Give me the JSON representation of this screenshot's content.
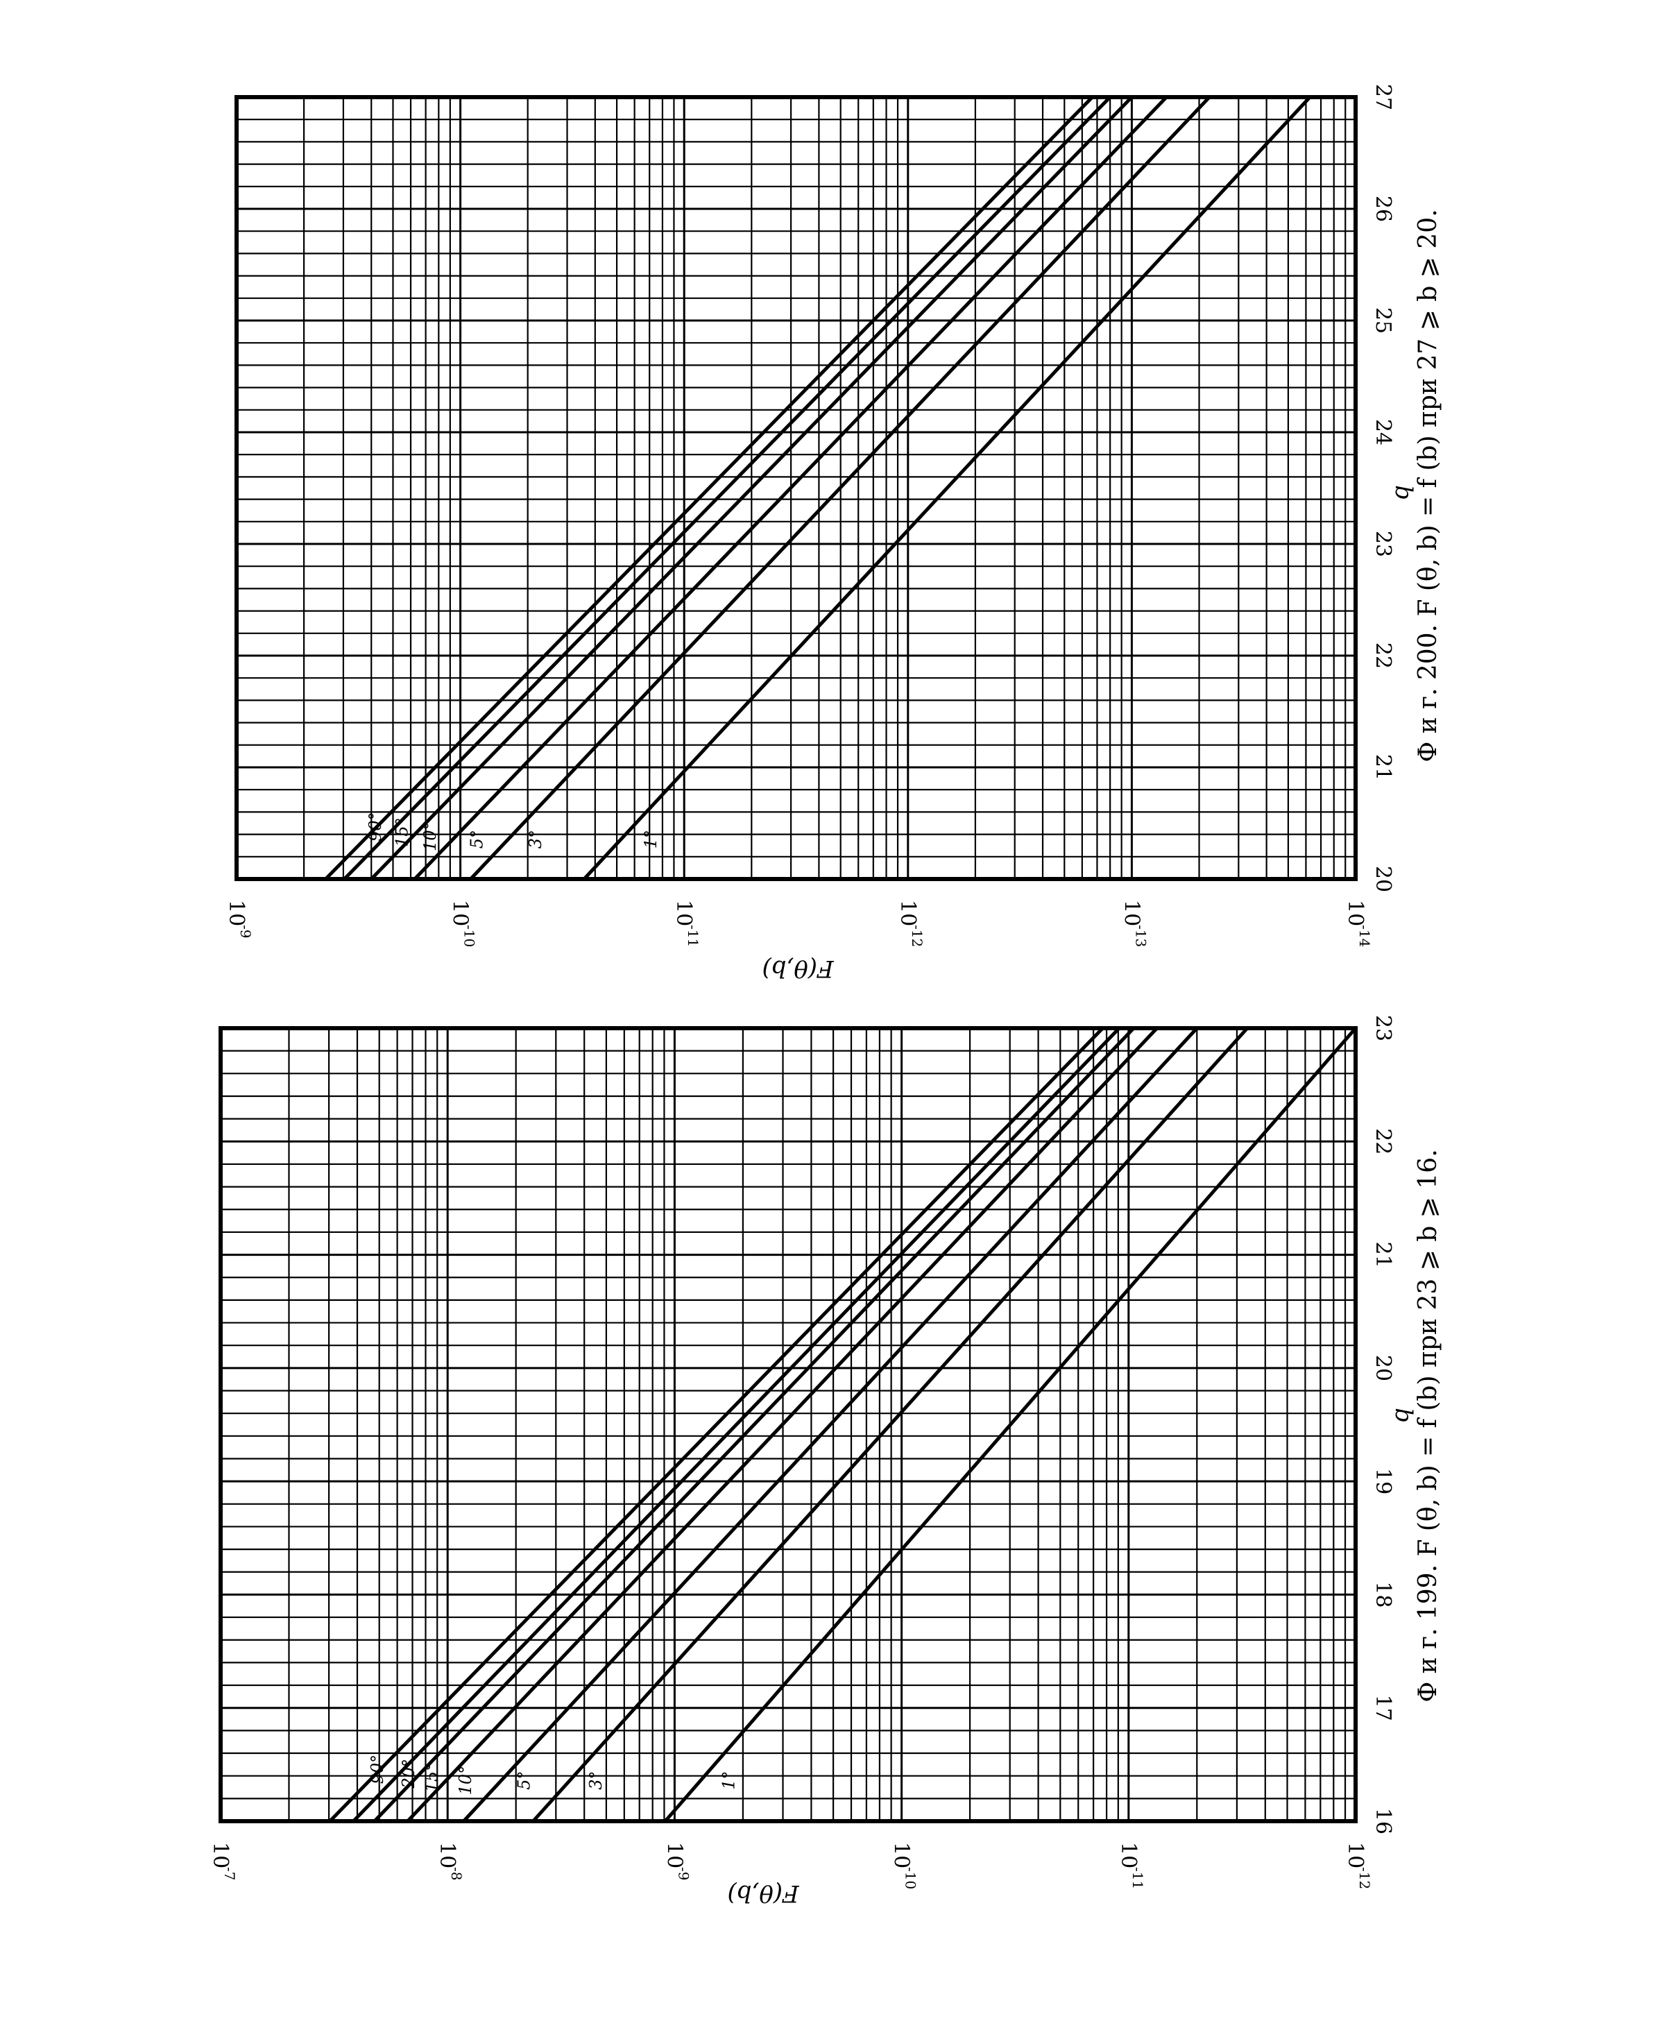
{
  "chart_data": [
    {
      "type": "line",
      "caption": "Ф и г. 199. F (θ, b) = f (b) при 23 ⩾ b ⩾ 16.",
      "xlabel": "b",
      "ylabel": "F(θ,b)",
      "x_ticks": [
        "16",
        "17",
        "18",
        "19",
        "20",
        "21",
        "22",
        "23"
      ],
      "xlim": [
        16,
        23
      ],
      "y_scale": "log",
      "ylim": [
        1e-12,
        1e-07
      ],
      "y_ticks": [
        {
          "base": "10",
          "exp": "-7"
        },
        {
          "base": "10",
          "exp": "-8"
        },
        {
          "base": "10",
          "exp": "-9"
        },
        {
          "base": "10",
          "exp": "-10"
        },
        {
          "base": "10",
          "exp": "-11"
        },
        {
          "base": "10",
          "exp": "-12"
        }
      ],
      "grid": true,
      "series": [
        {
          "name": "90°",
          "x": [
            16,
            23
          ],
          "y": [
            3.3e-08,
            1.3e-11
          ]
        },
        {
          "name": "20°",
          "x": [
            16,
            23
          ],
          "y": [
            2.6e-08,
            1.1e-11
          ]
        },
        {
          "name": "15°",
          "x": [
            16,
            23
          ],
          "y": [
            2.1e-08,
            9.5e-12
          ]
        },
        {
          "name": "10°",
          "x": [
            16,
            23
          ],
          "y": [
            1.5e-08,
            7.5e-12
          ]
        },
        {
          "name": "5°",
          "x": [
            16,
            23
          ],
          "y": [
            8.5e-09,
            5e-12
          ]
        },
        {
          "name": "3°",
          "x": [
            16,
            23
          ],
          "y": [
            4.2e-09,
            3e-12
          ]
        },
        {
          "name": "1°",
          "x": [
            16,
            23
          ],
          "y": [
            1.1e-09,
            1e-12
          ]
        }
      ]
    },
    {
      "type": "line",
      "caption": "Ф и г. 200. F (θ, b) = f (b) при 27 ⩾ b ⩾ 20.",
      "xlabel": "b",
      "ylabel": "F(θ,b)",
      "x_ticks": [
        "20",
        "21",
        "22",
        "23",
        "24",
        "25",
        "26",
        "27"
      ],
      "xlim": [
        20,
        27
      ],
      "y_scale": "log",
      "ylim": [
        1e-14,
        1e-09
      ],
      "y_ticks": [
        {
          "base": "10",
          "exp": "-9"
        },
        {
          "base": "10",
          "exp": "-10"
        },
        {
          "base": "10",
          "exp": "-11"
        },
        {
          "base": "10",
          "exp": "-12"
        },
        {
          "base": "10",
          "exp": "-13"
        },
        {
          "base": "10",
          "exp": "-14"
        }
      ],
      "grid": true,
      "series": [
        {
          "name": "90°",
          "x": [
            20,
            27
          ],
          "y": [
            4e-10,
            1.5e-13
          ]
        },
        {
          "name": "15°",
          "x": [
            20,
            27
          ],
          "y": [
            3.3e-10,
            1.25e-13
          ]
        },
        {
          "name": "10°",
          "x": [
            20,
            27
          ],
          "y": [
            2.5e-10,
            1e-13
          ]
        },
        {
          "name": "5°",
          "x": [
            20,
            27
          ],
          "y": [
            1.6e-10,
            7e-14
          ]
        },
        {
          "name": "3°",
          "x": [
            20,
            27
          ],
          "y": [
            9e-11,
            4.5e-14
          ]
        },
        {
          "name": "1°",
          "x": [
            20,
            27
          ],
          "y": [
            2.8e-11,
            1.6e-14
          ]
        }
      ]
    }
  ]
}
